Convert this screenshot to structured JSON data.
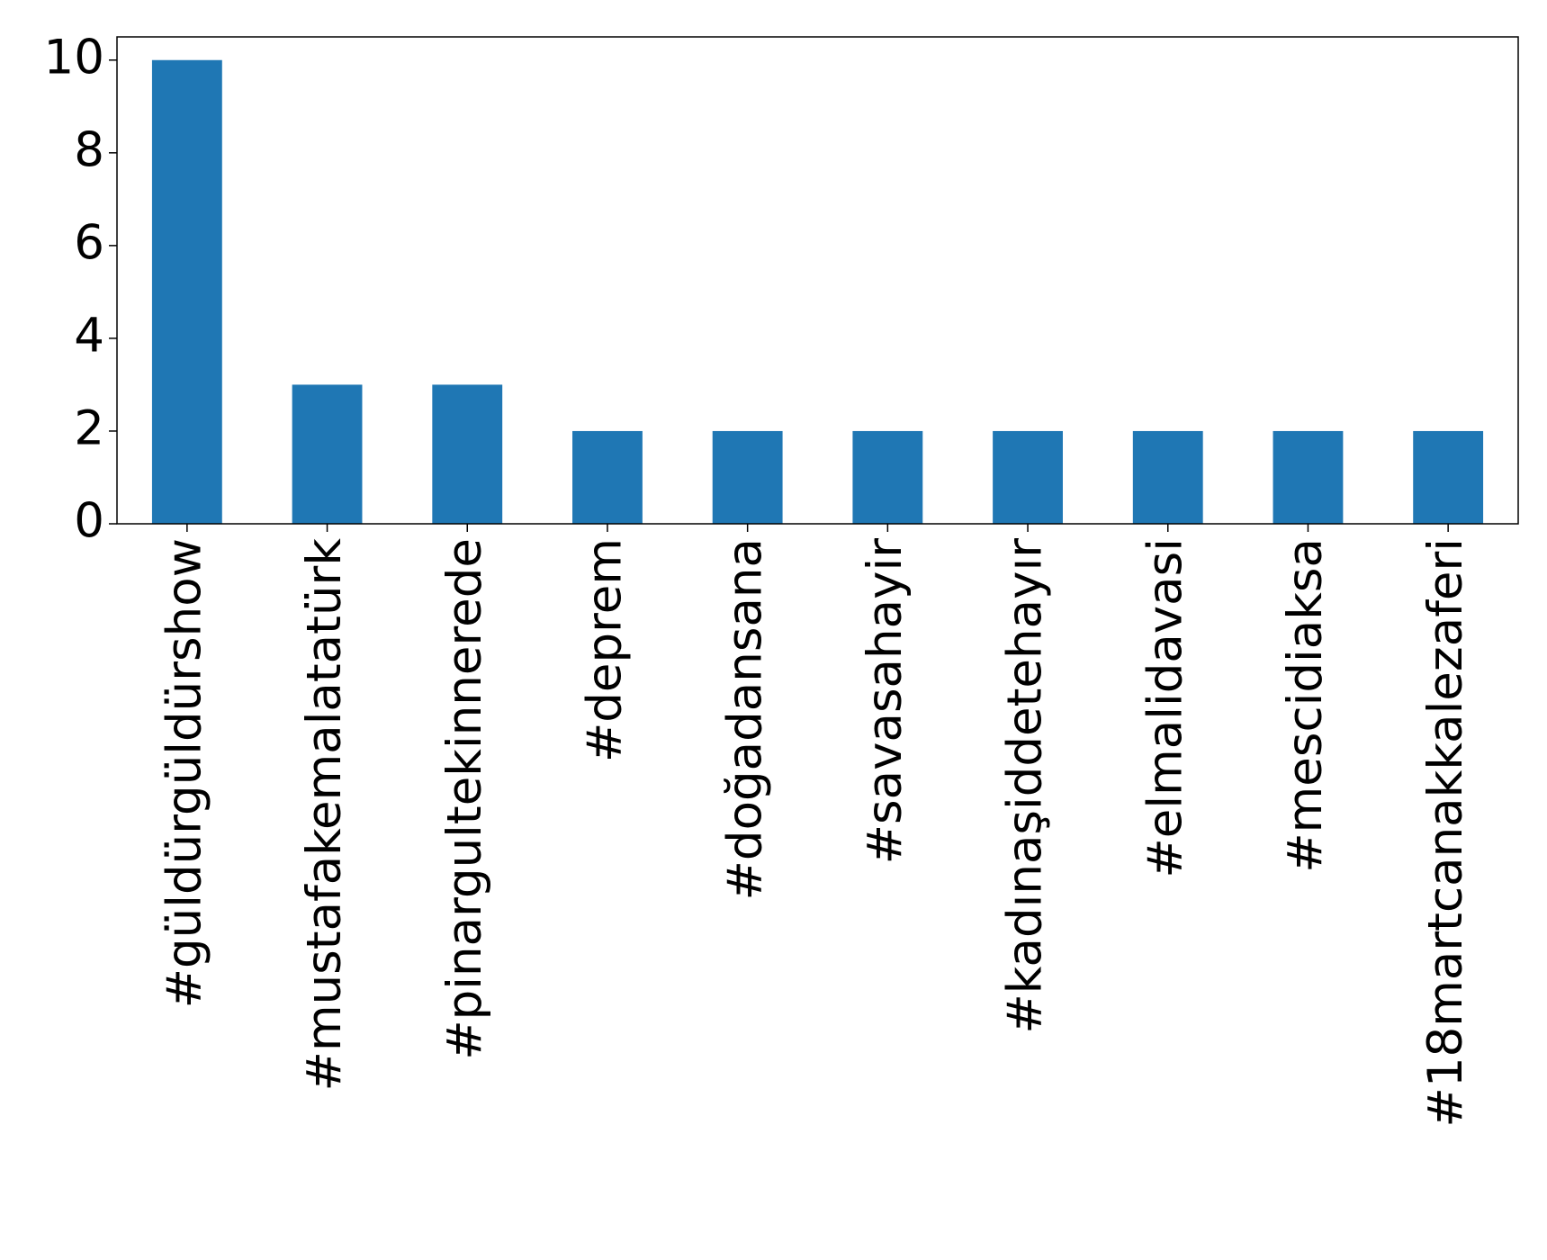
{
  "chart_data": {
    "type": "bar",
    "categories": [
      "#güldürgüldürshow",
      "#mustafakemalatatürk",
      "#pinargultekinnerede",
      "#deprem",
      "#doğadansana",
      "#savasahayir",
      "#kadınaşiddetehayır",
      "#elmalidavasi",
      "#mescidiaksa",
      "#18martcanakkalezaferi"
    ],
    "values": [
      10,
      3,
      3,
      2,
      2,
      2,
      2,
      2,
      2,
      2
    ],
    "color": "#1f77b4",
    "ylim": [
      0,
      10.5
    ],
    "yticks": [
      0,
      2,
      4,
      6,
      8,
      10
    ],
    "grid": false
  }
}
